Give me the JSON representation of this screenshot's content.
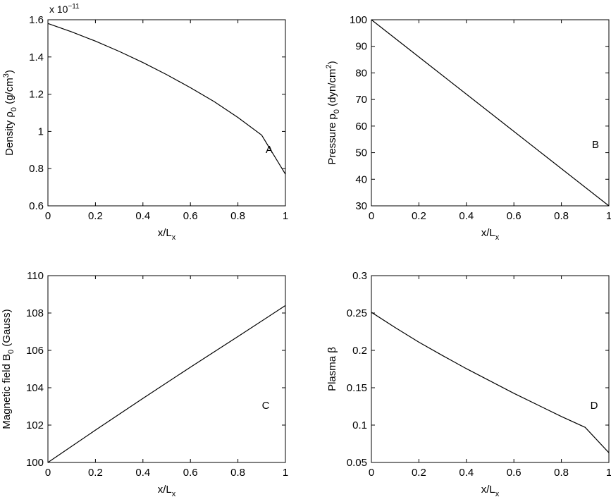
{
  "chart_data": [
    {
      "id": "A",
      "type": "line",
      "panel_label": "A",
      "xlabel": {
        "base": "x/L",
        "sub": "x"
      },
      "ylabel": {
        "pre": "Density ",
        "sym": "ρ",
        "sub": "0",
        "post": " (g/cm",
        "sup": "3",
        "end": ")"
      },
      "exponent": {
        "base": "x 10",
        "sup": "−11"
      },
      "xlim": [
        0,
        1
      ],
      "ylim": [
        0.6,
        1.6
      ],
      "xticks": [
        0,
        0.2,
        0.4,
        0.6,
        0.8,
        1
      ],
      "yticks": [
        0.6,
        0.8,
        1.0,
        1.2,
        1.4,
        1.6
      ],
      "xtick_labels": [
        "0",
        "0.2",
        "0.4",
        "0.6",
        "0.8",
        "1"
      ],
      "ytick_labels": [
        "0.6",
        "0.8",
        "1",
        "1.2",
        "1.4",
        "1.6"
      ],
      "grid": false,
      "series": [
        {
          "x": [
            0,
            0.1,
            0.2,
            0.3,
            0.4,
            0.5,
            0.6,
            0.7,
            0.8,
            0.9,
            1.0
          ],
          "y": [
            1.58,
            1.535,
            1.485,
            1.43,
            1.37,
            1.305,
            1.235,
            1.16,
            1.075,
            0.98,
            0.77
          ]
        }
      ]
    },
    {
      "id": "B",
      "type": "line",
      "panel_label": "B",
      "xlabel": {
        "base": "x/L",
        "sub": "x"
      },
      "ylabel": {
        "pre": "Pressure ",
        "sym": "p",
        "sub": "0",
        "post": " (dyn/cm",
        "sup": "2",
        "end": ")"
      },
      "xlim": [
        0,
        1
      ],
      "ylim": [
        30,
        100
      ],
      "xticks": [
        0,
        0.2,
        0.4,
        0.6,
        0.8,
        1
      ],
      "yticks": [
        30,
        40,
        50,
        60,
        70,
        80,
        90,
        100
      ],
      "xtick_labels": [
        "0",
        "0.2",
        "0.4",
        "0.6",
        "0.8",
        "1"
      ],
      "ytick_labels": [
        "30",
        "40",
        "50",
        "60",
        "70",
        "80",
        "90",
        "100"
      ],
      "grid": false,
      "series": [
        {
          "x": [
            0,
            0.25,
            0.5,
            0.75,
            1.0
          ],
          "y": [
            100,
            82.5,
            65,
            47.5,
            30
          ]
        }
      ]
    },
    {
      "id": "C",
      "type": "line",
      "panel_label": "C",
      "xlabel": {
        "base": "x/L",
        "sub": "x"
      },
      "ylabel": {
        "pre": "Magnetic field ",
        "sym": "B",
        "sub": "0",
        "post": " (Gauss)",
        "sup": "",
        "end": ""
      },
      "xlim": [
        0,
        1
      ],
      "ylim": [
        100,
        110
      ],
      "xticks": [
        0,
        0.2,
        0.4,
        0.6,
        0.8,
        1
      ],
      "yticks": [
        100,
        102,
        104,
        106,
        108,
        110
      ],
      "xtick_labels": [
        "0",
        "0.2",
        "0.4",
        "0.6",
        "0.8",
        "1"
      ],
      "ytick_labels": [
        "100",
        "102",
        "104",
        "106",
        "108",
        "110"
      ],
      "grid": false,
      "series": [
        {
          "x": [
            0,
            0.2,
            0.4,
            0.6,
            0.8,
            1.0
          ],
          "y": [
            100,
            101.73,
            103.43,
            105.1,
            106.74,
            108.4
          ]
        }
      ]
    },
    {
      "id": "D",
      "type": "line",
      "panel_label": "D",
      "xlabel": {
        "base": "x/L",
        "sub": "x"
      },
      "ylabel": {
        "pre": "Plasma ",
        "sym": "β",
        "sub": "",
        "post": "",
        "sup": "",
        "end": ""
      },
      "xlim": [
        0,
        1
      ],
      "ylim": [
        0.05,
        0.3
      ],
      "xticks": [
        0,
        0.2,
        0.4,
        0.6,
        0.8,
        1
      ],
      "yticks": [
        0.05,
        0.1,
        0.15,
        0.2,
        0.25,
        0.3
      ],
      "xtick_labels": [
        "0",
        "0.2",
        "0.4",
        "0.6",
        "0.8",
        "1"
      ],
      "ytick_labels": [
        "0.05",
        "0.1",
        "0.15",
        "0.2",
        "0.25",
        "0.3"
      ],
      "grid": false,
      "series": [
        {
          "x": [
            0,
            0.1,
            0.2,
            0.3,
            0.4,
            0.5,
            0.6,
            0.7,
            0.8,
            0.9,
            1.0
          ],
          "y": [
            0.251,
            0.2305,
            0.211,
            0.193,
            0.1755,
            0.159,
            0.1425,
            0.127,
            0.1115,
            0.097,
            0.063
          ]
        }
      ]
    }
  ]
}
